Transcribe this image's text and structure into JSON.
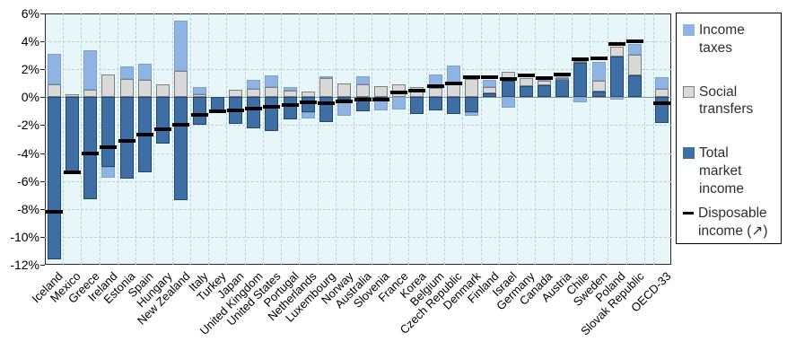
{
  "legend": {
    "items": [
      {
        "label": "Income\ntaxes",
        "series": "Income taxes",
        "color": "#8db4e2",
        "swatch": "square"
      },
      {
        "label": "Social\ntransfers",
        "series": "Social transfers",
        "color": "#d9d9d9",
        "swatch": "square"
      },
      {
        "label": "Total\nmarket\nincome",
        "series": "Total market income",
        "color": "#3d6fa5",
        "swatch": "square"
      },
      {
        "label": "Disposable\nincome  (↗)",
        "series": "Disposable income",
        "color": "#000000",
        "swatch": "dash"
      }
    ]
  },
  "chart_data": {
    "type": "bar",
    "stacked": true,
    "unit": "percent",
    "title": "",
    "xlabel": "",
    "ylabel": "",
    "ylim": [
      -12,
      6
    ],
    "ytick_step": 2,
    "ytick_labels": [
      "6%",
      "4%",
      "2%",
      "0%",
      "-2%",
      "-4%",
      "-6%",
      "-8%",
      "-10%",
      "-12%"
    ],
    "grid": true,
    "legend_position": "right",
    "plot_background": "#e7f6f8",
    "gap_before_last_category": true,
    "categories": [
      "Iceland",
      "Mexico",
      "Greece",
      "Ireland",
      "Estonia",
      "Spain",
      "Hungary",
      "New Zealand",
      "Italy",
      "Turkey",
      "Japan",
      "United Kingdom",
      "United States",
      "Portugal",
      "Netherlands",
      "Luxembourg",
      "Norway",
      "Australia",
      "Slovenia",
      "France",
      "Korea",
      "Belgium",
      "Czech Republic",
      "Denmark",
      "Finland",
      "Israel",
      "Germany",
      "Canada",
      "Austria",
      "Chile",
      "Sweden",
      "Poland",
      "Slovak Republic",
      "OECD-33"
    ],
    "series": [
      {
        "name": "Income taxes",
        "role": "bar",
        "stack_rank": 2,
        "color": "#8db4e2",
        "values": [
          2.2,
          0,
          2.8,
          -0.75,
          0.9,
          1.15,
          0,
          3.6,
          0.5,
          0,
          0,
          0.65,
          0.8,
          0.25,
          -0.45,
          0.15,
          -1.15,
          0.6,
          -0.7,
          -0.9,
          0,
          1.0,
          1.35,
          -0.25,
          0.5,
          -0.75,
          0,
          0.15,
          0.2,
          -0.35,
          1.3,
          -0.15,
          0.75,
          0.85
        ]
      },
      {
        "name": "Social transfers",
        "role": "bar",
        "stack_rank": 1,
        "color": "#d9d9d9",
        "values": [
          0.9,
          0.2,
          0.55,
          1.65,
          1.3,
          1.25,
          0.9,
          1.9,
          0.2,
          0,
          0.55,
          0.6,
          0.75,
          0.5,
          0.4,
          1.35,
          1.0,
          0.9,
          0.8,
          0.9,
          0.75,
          0.65,
          0.9,
          1.3,
          0.45,
          0.65,
          0.6,
          0.3,
          0.1,
          0.15,
          0.8,
          0.7,
          1.5,
          0.6
        ]
      },
      {
        "name": "Total market income",
        "role": "bar",
        "stack_rank": 0,
        "color": "#3d6fa5",
        "values": [
          -11.6,
          -5.4,
          -7.3,
          -5.0,
          -5.8,
          -5.4,
          -3.3,
          -7.4,
          -2.0,
          -1.0,
          -1.9,
          -2.2,
          -2.45,
          -1.6,
          -1.05,
          -1.8,
          -0.2,
          -1.0,
          -0.25,
          0,
          -1.2,
          -0.95,
          -1.2,
          -1.05,
          0.3,
          1.15,
          0.8,
          0.85,
          1.3,
          2.45,
          0.4,
          2.9,
          1.55,
          -1.85
        ]
      },
      {
        "name": "Disposable income",
        "role": "marker",
        "color": "#000000",
        "values": [
          -8.2,
          -5.4,
          -4.0,
          -3.6,
          -3.1,
          -2.7,
          -2.3,
          -2.0,
          -1.25,
          -1.0,
          -0.95,
          -0.8,
          -0.7,
          -0.55,
          -0.35,
          -0.4,
          -0.3,
          -0.15,
          -0.15,
          0.35,
          0.5,
          0.8,
          1.0,
          1.45,
          1.45,
          1.3,
          1.55,
          1.4,
          1.65,
          2.7,
          2.8,
          3.8,
          4.0,
          -0.4
        ]
      }
    ]
  }
}
